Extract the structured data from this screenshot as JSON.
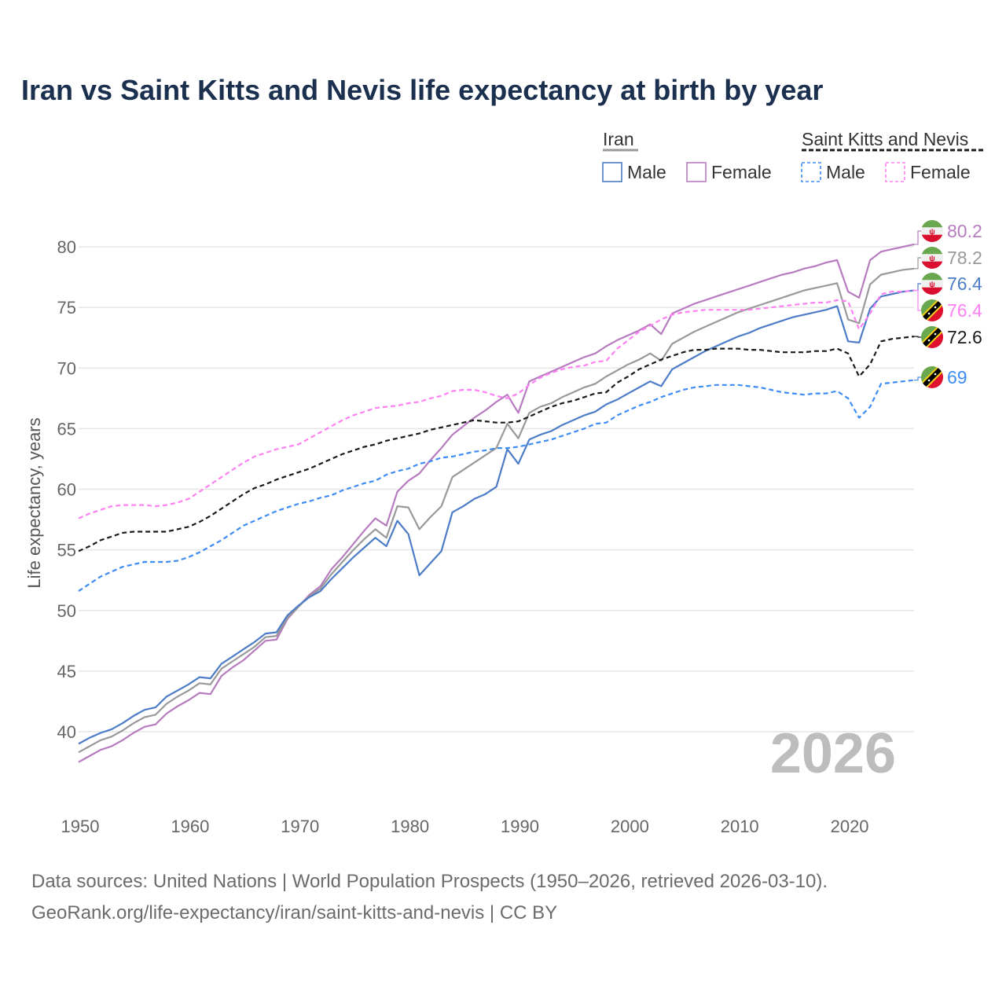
{
  "chart_data": {
    "type": "line",
    "title": "Iran vs Saint Kitts and Nevis life expectancy at birth by year",
    "xlabel": "",
    "ylabel": "Life expectancy, years",
    "xlim": [
      1950,
      2026
    ],
    "ylim": [
      35.5,
      82
    ],
    "x_ticks": [
      "1950",
      "1960",
      "1970",
      "1980",
      "1990",
      "2000",
      "2010",
      "2020"
    ],
    "y_ticks": [
      "40",
      "45",
      "50",
      "55",
      "60",
      "65",
      "70",
      "75",
      "80"
    ],
    "grid": true,
    "watermark": "2026",
    "legend": {
      "placement": "top-right",
      "groups": [
        {
          "name": "Iran",
          "items": [
            "Male",
            "Female"
          ]
        },
        {
          "name": "Saint Kitts and Nevis",
          "items": [
            "Male",
            "Female"
          ]
        }
      ]
    },
    "x_start": 1950,
    "series": [
      {
        "name": "Iran Female",
        "color": "#b77bbf",
        "dashed": false,
        "end_label": "80.2",
        "flag": "iran",
        "values": [
          37.5,
          38.0,
          38.5,
          38.8,
          39.3,
          39.9,
          40.4,
          40.6,
          41.5,
          42.1,
          42.6,
          43.2,
          43.1,
          44.6,
          45.3,
          45.9,
          46.7,
          47.5,
          47.6,
          49.3,
          50.3,
          51.3,
          52.0,
          53.4,
          54.4,
          55.5,
          56.6,
          57.6,
          57.0,
          59.8,
          60.7,
          61.3,
          62.4,
          63.4,
          64.5,
          65.2,
          65.9,
          66.5,
          67.2,
          67.8,
          66.3,
          68.9,
          69.3,
          69.7,
          70.1,
          70.5,
          70.9,
          71.2,
          71.8,
          72.3,
          72.7,
          73.1,
          73.6,
          72.8,
          74.5,
          74.9,
          75.3,
          75.6,
          75.9,
          76.2,
          76.5,
          76.8,
          77.1,
          77.4,
          77.7,
          77.9,
          78.2,
          78.4,
          78.7,
          78.9,
          76.3,
          75.8,
          78.9,
          79.6,
          79.8,
          80.0,
          80.2
        ]
      },
      {
        "name": "Iran",
        "color": "#999999",
        "dashed": false,
        "end_label": "78.2",
        "flag": "iran",
        "values": [
          38.3,
          38.8,
          39.3,
          39.6,
          40.1,
          40.7,
          41.2,
          41.4,
          42.3,
          42.9,
          43.4,
          44.0,
          43.9,
          45.2,
          45.8,
          46.4,
          47.0,
          47.8,
          47.9,
          49.4,
          50.3,
          51.2,
          51.8,
          53.0,
          54.0,
          55.0,
          55.9,
          56.7,
          56.0,
          58.6,
          58.5,
          56.7,
          57.7,
          58.6,
          61.0,
          61.6,
          62.2,
          62.8,
          63.4,
          65.4,
          64.2,
          66.3,
          66.8,
          67.1,
          67.6,
          68.0,
          68.4,
          68.7,
          69.3,
          69.8,
          70.3,
          70.7,
          71.2,
          70.6,
          72.0,
          72.5,
          73.0,
          73.4,
          73.8,
          74.2,
          74.6,
          74.9,
          75.2,
          75.5,
          75.8,
          76.1,
          76.4,
          76.6,
          76.8,
          77.0,
          74.0,
          73.7,
          76.9,
          77.7,
          77.9,
          78.1,
          78.2
        ]
      },
      {
        "name": "Iran Male",
        "color": "#4d7cc7",
        "dashed": false,
        "end_label": "76.4",
        "flag": "iran",
        "values": [
          39.0,
          39.5,
          39.9,
          40.2,
          40.7,
          41.3,
          41.8,
          42.0,
          42.9,
          43.4,
          43.9,
          44.5,
          44.4,
          45.6,
          46.2,
          46.8,
          47.4,
          48.1,
          48.2,
          49.6,
          50.4,
          51.1,
          51.6,
          52.6,
          53.5,
          54.4,
          55.2,
          56.0,
          55.3,
          57.4,
          56.3,
          52.9,
          53.9,
          54.9,
          58.1,
          58.6,
          59.2,
          59.6,
          60.2,
          63.3,
          62.1,
          64.1,
          64.5,
          64.8,
          65.3,
          65.7,
          66.1,
          66.4,
          67.0,
          67.4,
          67.9,
          68.4,
          68.9,
          68.5,
          69.9,
          70.4,
          70.9,
          71.4,
          71.8,
          72.2,
          72.6,
          72.9,
          73.3,
          73.6,
          73.9,
          74.2,
          74.4,
          74.6,
          74.8,
          75.1,
          72.2,
          72.1,
          74.9,
          75.9,
          76.1,
          76.3,
          76.4
        ]
      },
      {
        "name": "Saint Kitts and Nevis Female",
        "color": "#ff80f2",
        "dashed": true,
        "end_label": "76.4",
        "flag": "skn",
        "values": [
          57.6,
          58.0,
          58.3,
          58.6,
          58.7,
          58.7,
          58.7,
          58.6,
          58.7,
          58.9,
          59.2,
          59.8,
          60.4,
          61.0,
          61.6,
          62.2,
          62.7,
          63.0,
          63.3,
          63.5,
          63.7,
          64.2,
          64.7,
          65.2,
          65.7,
          66.1,
          66.4,
          66.7,
          66.8,
          66.9,
          67.1,
          67.2,
          67.5,
          67.7,
          68.1,
          68.2,
          68.2,
          68.0,
          67.7,
          67.5,
          67.9,
          68.6,
          69.2,
          69.6,
          69.9,
          70.1,
          70.2,
          70.5,
          70.6,
          71.6,
          72.3,
          73.0,
          73.5,
          74.0,
          74.4,
          74.6,
          74.7,
          74.8,
          74.8,
          74.8,
          74.8,
          74.8,
          74.9,
          75.0,
          75.1,
          75.2,
          75.3,
          75.4,
          75.4,
          75.6,
          75.5,
          73.2,
          74.5,
          76.1,
          76.3,
          76.3,
          76.4
        ]
      },
      {
        "name": "Saint Kitts and Nevis",
        "color": "#1a1a1a",
        "dashed": true,
        "end_label": "72.6",
        "flag": "skn",
        "values": [
          54.9,
          55.3,
          55.8,
          56.1,
          56.4,
          56.5,
          56.5,
          56.5,
          56.5,
          56.7,
          56.9,
          57.3,
          57.8,
          58.4,
          59.0,
          59.6,
          60.1,
          60.4,
          60.8,
          61.1,
          61.4,
          61.7,
          62.1,
          62.5,
          62.9,
          63.2,
          63.5,
          63.7,
          64.0,
          64.2,
          64.4,
          64.6,
          64.9,
          65.1,
          65.3,
          65.5,
          65.7,
          65.6,
          65.5,
          65.5,
          65.6,
          66.0,
          66.4,
          66.8,
          67.1,
          67.3,
          67.6,
          67.9,
          68.0,
          68.8,
          69.3,
          69.9,
          70.3,
          70.7,
          71.0,
          71.3,
          71.5,
          71.5,
          71.6,
          71.6,
          71.6,
          71.5,
          71.5,
          71.4,
          71.3,
          71.3,
          71.3,
          71.4,
          71.4,
          71.6,
          71.2,
          69.3,
          70.3,
          72.2,
          72.4,
          72.5,
          72.6
        ]
      },
      {
        "name": "Saint Kitts and Nevis Male",
        "color": "#3d8bf5",
        "dashed": true,
        "end_label": "69",
        "flag": "skn",
        "values": [
          51.6,
          52.2,
          52.8,
          53.2,
          53.6,
          53.8,
          54.0,
          54.0,
          54.0,
          54.1,
          54.4,
          54.8,
          55.3,
          55.8,
          56.4,
          57.0,
          57.4,
          57.8,
          58.2,
          58.5,
          58.8,
          59.0,
          59.3,
          59.5,
          59.9,
          60.2,
          60.5,
          60.7,
          61.2,
          61.5,
          61.7,
          62.1,
          62.3,
          62.6,
          62.7,
          62.9,
          63.1,
          63.2,
          63.4,
          63.4,
          63.5,
          63.7,
          63.9,
          64.1,
          64.4,
          64.7,
          65.0,
          65.4,
          65.5,
          66.1,
          66.5,
          66.9,
          67.2,
          67.6,
          67.9,
          68.2,
          68.4,
          68.5,
          68.6,
          68.6,
          68.6,
          68.5,
          68.4,
          68.2,
          68.0,
          67.9,
          67.8,
          67.9,
          67.9,
          68.1,
          67.5,
          65.9,
          66.8,
          68.7,
          68.8,
          68.9,
          69.0
        ]
      }
    ]
  },
  "footer": {
    "line1": "Data sources: United Nations | World Population Prospects (1950–2026, retrieved 2026-03-10).",
    "line2": "GeoRank.org/life-expectancy/iran/saint-kitts-and-nevis | CC BY"
  }
}
